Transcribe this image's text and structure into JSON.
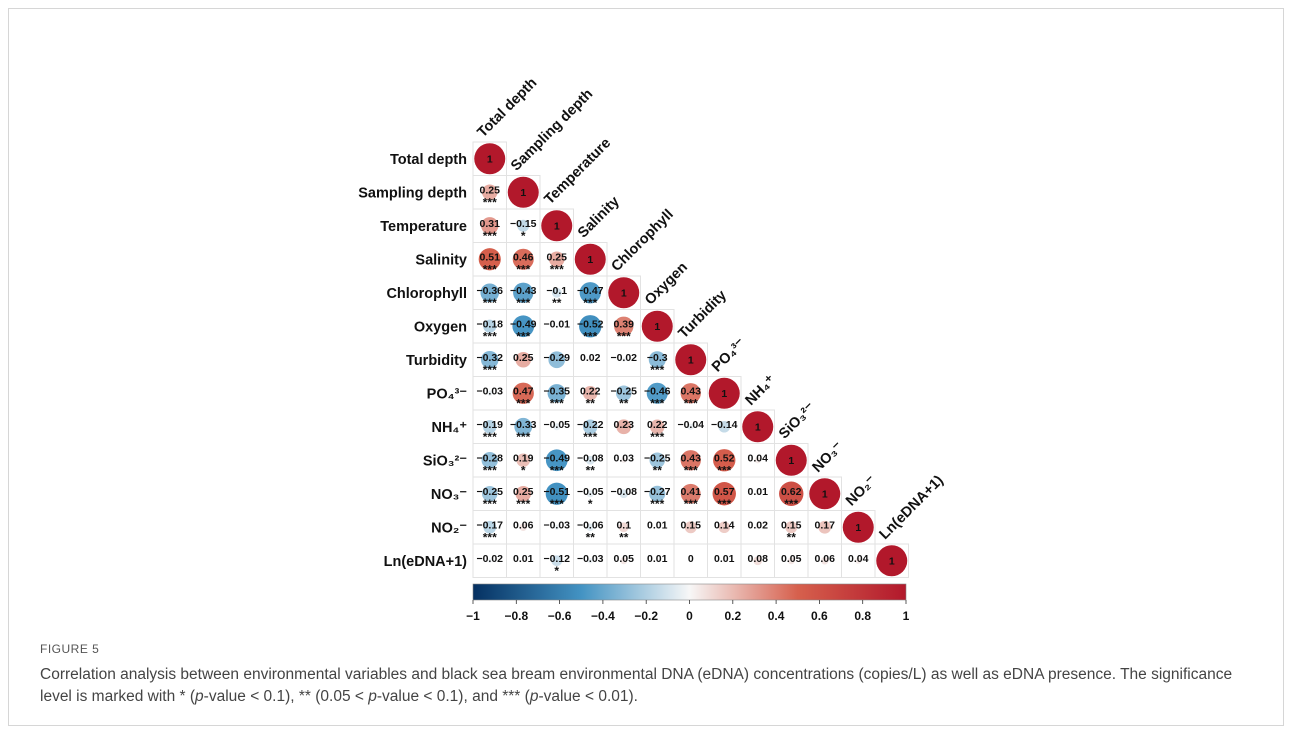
{
  "figure": {
    "label": "FIGURE 5",
    "caption": {
      "parts": [
        "Correlation analysis between environmental variables and black sea bream environmental DNA (eDNA) concentrations (copies/L) as well as eDNA presence. The significance level is marked with * (",
        "p",
        "-value < 0.1), ** (0.05 < ",
        "p",
        "-value < 0.1), and *** (",
        "p",
        "-value < 0.01)."
      ]
    }
  },
  "chart_data": {
    "type": "heatmap",
    "subtype": "lower-triangle correlation matrix (circles)",
    "variables": [
      "Total depth",
      "Sampling depth",
      "Temperature",
      "Salinity",
      "Chlorophyll",
      "Oxygen",
      "Turbidity",
      "PO₄³⁻",
      "NH₄⁺",
      "SiO₃²⁻",
      "NO₃⁻",
      "NO₂⁻",
      "Ln(eDNA+1)"
    ],
    "matrix": [
      [
        1
      ],
      [
        0.25,
        1
      ],
      [
        0.31,
        -0.15,
        1
      ],
      [
        0.51,
        0.46,
        0.25,
        1
      ],
      [
        -0.36,
        -0.43,
        -0.1,
        -0.47,
        1
      ],
      [
        -0.18,
        -0.49,
        -0.01,
        -0.52,
        0.39,
        1
      ],
      [
        -0.32,
        0.25,
        -0.29,
        0.02,
        -0.02,
        -0.3,
        1
      ],
      [
        -0.03,
        0.47,
        -0.35,
        0.22,
        -0.25,
        -0.46,
        0.43,
        1
      ],
      [
        -0.19,
        -0.33,
        -0.05,
        -0.22,
        0.23,
        0.22,
        -0.04,
        -0.14,
        1
      ],
      [
        -0.28,
        0.19,
        -0.49,
        -0.08,
        0.03,
        -0.25,
        0.43,
        0.52,
        0.04,
        1
      ],
      [
        -0.25,
        0.25,
        -0.51,
        -0.05,
        -0.08,
        -0.27,
        0.41,
        0.57,
        0.01,
        0.62,
        1
      ],
      [
        -0.17,
        0.06,
        -0.03,
        -0.06,
        0.1,
        0.01,
        0.15,
        0.14,
        0.02,
        0.15,
        0.17,
        1
      ],
      [
        -0.02,
        0.01,
        -0.12,
        -0.03,
        0.05,
        0.01,
        0,
        0.01,
        0.08,
        0.05,
        0.06,
        0.04,
        1
      ]
    ],
    "significance": [
      [
        ""
      ],
      [
        "***",
        ""
      ],
      [
        "***",
        "*",
        ""
      ],
      [
        "***",
        "***",
        "***",
        ""
      ],
      [
        "***",
        "***",
        "**",
        "***",
        ""
      ],
      [
        "***",
        "***",
        "",
        "***",
        "***",
        ""
      ],
      [
        "***",
        "",
        "",
        "",
        "",
        "***",
        ""
      ],
      [
        "",
        "***",
        "***",
        "**",
        "**",
        "***",
        "***",
        ""
      ],
      [
        "***",
        "***",
        "",
        "***",
        "",
        "***",
        "",
        "",
        ""
      ],
      [
        "***",
        "*",
        "***",
        "**",
        "",
        "**",
        "***",
        "***",
        "",
        ""
      ],
      [
        "***",
        "***",
        "***",
        "*",
        "",
        "***",
        "***",
        "***",
        "",
        "***",
        ""
      ],
      [
        "***",
        "",
        "",
        "**",
        "**",
        "",
        "",
        "",
        "",
        "**",
        "",
        ""
      ],
      [
        "",
        "",
        "*",
        "",
        "",
        "",
        "",
        "",
        "",
        "",
        "",
        "",
        ""
      ]
    ],
    "colorbar": {
      "range": [
        -1,
        1
      ],
      "ticks": [
        "−1",
        "−0.8",
        "−0.6",
        "−0.4",
        "−0.2",
        "0",
        "0.2",
        "0.4",
        "0.6",
        "0.8",
        "1"
      ],
      "colors": {
        "negative": "#053061",
        "neutral": "#f7f7f7",
        "positive": "#b2182b"
      }
    }
  }
}
